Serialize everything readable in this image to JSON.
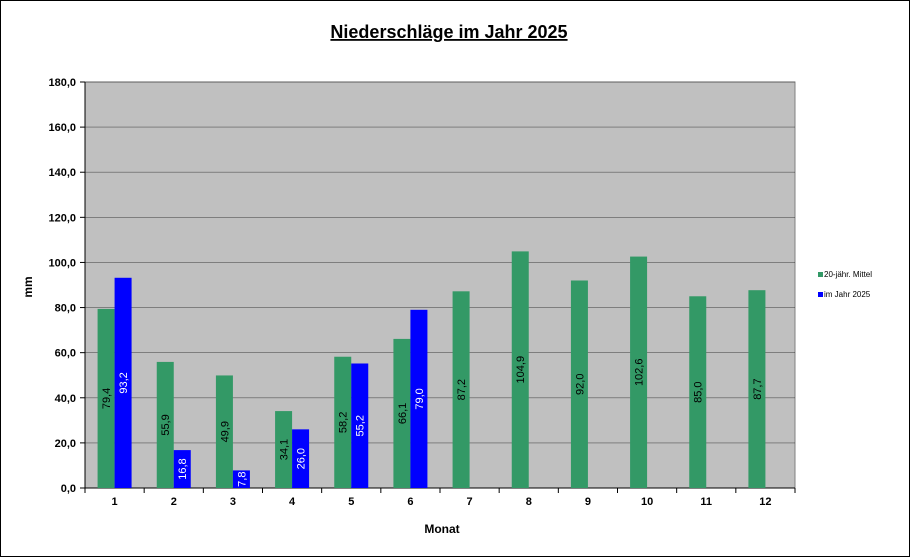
{
  "chart_data": {
    "type": "bar",
    "title": "Niederschläge im Jahr  2025",
    "xlabel": "Monat",
    "ylabel": "mm",
    "categories": [
      "1",
      "2",
      "3",
      "4",
      "5",
      "6",
      "7",
      "8",
      "9",
      "10",
      "11",
      "12"
    ],
    "ylim": [
      0,
      180
    ],
    "yticks": [
      "0,0",
      "20,0",
      "40,0",
      "60,0",
      "80,0",
      "100,0",
      "120,0",
      "140,0",
      "160,0",
      "180,0"
    ],
    "ytick_values": [
      0,
      20,
      40,
      60,
      80,
      100,
      120,
      140,
      160,
      180
    ],
    "grid": true,
    "legend_position": "right",
    "series": [
      {
        "name": "20-jähr. Mittel",
        "color": "#339966",
        "label_color": "#000000",
        "values": [
          79.4,
          55.9,
          49.9,
          34.1,
          58.2,
          66.1,
          87.2,
          104.9,
          92.0,
          102.6,
          85.0,
          87.7
        ],
        "labels": [
          "79,4",
          "55,9",
          "49,9",
          "34,1",
          "58,2",
          "66,1",
          "87,2",
          "104,9",
          "92,0",
          "102,6",
          "85,0",
          "87,7"
        ]
      },
      {
        "name": "im Jahr 2025",
        "color": "#0000ff",
        "label_color": "#ffffff",
        "values": [
          93.2,
          16.8,
          7.8,
          26.0,
          55.2,
          79.0,
          null,
          null,
          null,
          null,
          null,
          null
        ],
        "labels": [
          "93,2",
          "16,8",
          "7,8",
          "26,0",
          "55,2",
          "79,0",
          "",
          "",
          "",
          "",
          "",
          ""
        ]
      }
    ],
    "plot_background": "#c0c0c0"
  }
}
